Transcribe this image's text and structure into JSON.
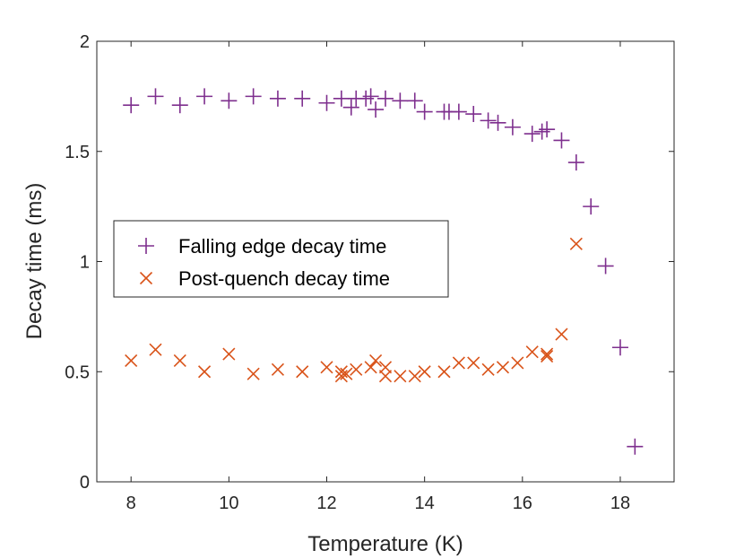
{
  "chart_data": {
    "type": "scatter",
    "title": "",
    "xlabel": "Temperature (K)",
    "ylabel": "Decay time (ms)",
    "xlim": [
      7.3,
      19.1
    ],
    "ylim": [
      0,
      2
    ],
    "xticks": [
      8,
      10,
      12,
      14,
      16,
      18
    ],
    "yticks": [
      0,
      0.5,
      1,
      1.5,
      2
    ],
    "ytick_labels": [
      "0",
      "0.5",
      "1",
      "1.5",
      "2"
    ],
    "grid": false,
    "legend_position": "middle-left",
    "series": [
      {
        "name": "Falling edge decay time",
        "marker": "plus",
        "color": "#7E2F8E",
        "x": [
          8.0,
          8.5,
          9.0,
          9.5,
          10.0,
          10.5,
          11.0,
          11.5,
          12.0,
          12.3,
          12.5,
          12.6,
          12.8,
          12.9,
          13.0,
          13.2,
          13.5,
          13.8,
          14.0,
          14.4,
          14.5,
          14.7,
          15.0,
          15.3,
          15.5,
          15.8,
          16.2,
          16.4,
          16.5,
          16.8,
          17.1,
          17.4,
          17.7,
          18.0,
          18.3
        ],
        "y": [
          1.71,
          1.75,
          1.71,
          1.75,
          1.73,
          1.75,
          1.74,
          1.74,
          1.72,
          1.74,
          1.7,
          1.74,
          1.74,
          1.75,
          1.69,
          1.74,
          1.73,
          1.73,
          1.68,
          1.68,
          1.68,
          1.68,
          1.67,
          1.64,
          1.63,
          1.61,
          1.58,
          1.59,
          1.6,
          1.55,
          1.45,
          1.25,
          0.98,
          0.61,
          0.16
        ]
      },
      {
        "name": "Post-quench decay time",
        "marker": "x",
        "color": "#D95319",
        "x": [
          8.0,
          8.5,
          9.0,
          9.5,
          10.0,
          10.5,
          11.0,
          11.5,
          12.0,
          12.3,
          12.3,
          12.4,
          12.6,
          12.9,
          13.0,
          13.2,
          13.2,
          13.5,
          13.8,
          14.0,
          14.4,
          14.7,
          15.0,
          15.3,
          15.6,
          15.9,
          16.2,
          16.5,
          16.5,
          16.8,
          17.1
        ],
        "y": [
          0.55,
          0.6,
          0.55,
          0.5,
          0.58,
          0.49,
          0.51,
          0.5,
          0.52,
          0.48,
          0.5,
          0.49,
          0.51,
          0.52,
          0.55,
          0.48,
          0.52,
          0.48,
          0.48,
          0.5,
          0.5,
          0.54,
          0.54,
          0.51,
          0.52,
          0.54,
          0.59,
          0.57,
          0.58,
          0.67,
          1.08
        ]
      }
    ]
  }
}
